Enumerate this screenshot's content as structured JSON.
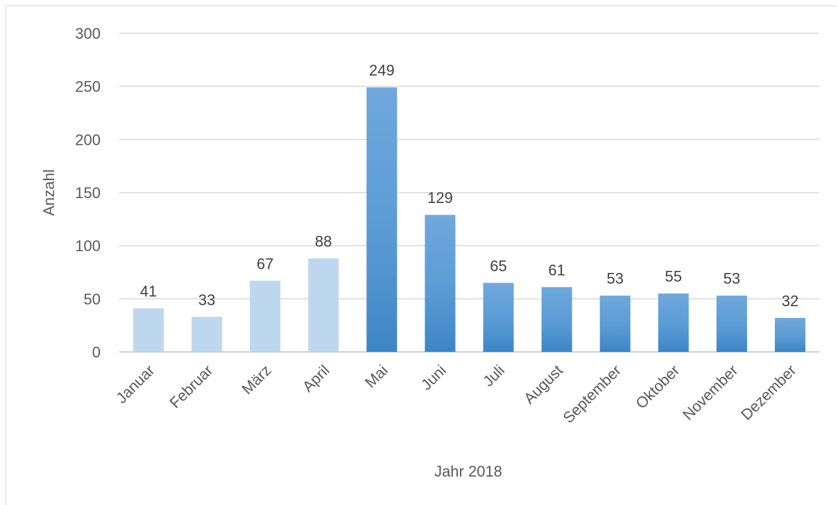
{
  "chart_data": {
    "type": "bar",
    "categories": [
      "Januar",
      "Februar",
      "März",
      "April",
      "Mai",
      "Juni",
      "Juli",
      "August",
      "September",
      "Oktober",
      "November",
      "Dezember"
    ],
    "values": [
      41,
      33,
      67,
      88,
      249,
      129,
      65,
      61,
      53,
      55,
      53,
      32
    ],
    "xlabel": "Jahr 2018",
    "ylabel": "Anzahl",
    "ylim": [
      0,
      300
    ],
    "yticks": [
      0,
      50,
      100,
      150,
      200,
      250,
      300
    ],
    "grid": true,
    "legend": "none",
    "colors": {
      "light": "#bdd7ee",
      "dark_top": "#6fa8dc",
      "dark_mid": "#5b9bd5",
      "dark_bottom": "#3d85c6",
      "gridline": "#d9d9d9",
      "axis": "#bfbfbf"
    },
    "light_categories": [
      "Januar",
      "Februar",
      "März",
      "April"
    ]
  }
}
